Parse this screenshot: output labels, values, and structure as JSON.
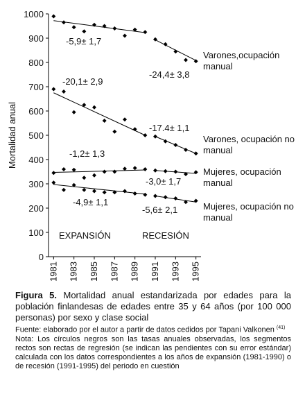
{
  "chart_data": {
    "type": "scatter",
    "ylabel": "Mortalidad anual",
    "x": [
      1981,
      1982,
      1983,
      1984,
      1985,
      1986,
      1987,
      1988,
      1989,
      1990,
      1991,
      1992,
      1993,
      1994,
      1995
    ],
    "xlim": [
      1980.5,
      1995.5
    ],
    "xticks": [
      1981,
      1983,
      1985,
      1987,
      1989,
      1991,
      1993,
      1995
    ],
    "ylim": [
      0,
      1000
    ],
    "yticks": [
      0,
      100,
      200,
      300,
      400,
      500,
      600,
      700,
      800,
      900,
      1000
    ],
    "series": [
      {
        "name": "Varones,ocupación manual",
        "color": "#000000",
        "values": [
          990,
          965,
          945,
          928,
          955,
          950,
          940,
          910,
          935,
          925,
          895,
          875,
          845,
          810,
          805
        ],
        "trends": [
          {
            "x": [
              1981,
              1990
            ],
            "y": [
              972,
              923
            ]
          },
          {
            "x": [
              1991,
              1995
            ],
            "y": [
              893,
              808
            ]
          }
        ]
      },
      {
        "name": "Varones, ocupación no manual",
        "color": "#000000",
        "values": [
          690,
          680,
          595,
          625,
          615,
          560,
          515,
          565,
          525,
          500,
          495,
          475,
          460,
          440,
          425
        ],
        "trends": [
          {
            "x": [
              1981,
              1990
            ],
            "y": [
              675,
              500
            ]
          },
          {
            "x": [
              1991,
              1995
            ],
            "y": [
              495,
              425
            ]
          }
        ]
      },
      {
        "name": "Mujeres, ocupación manual",
        "color": "#000000",
        "values": [
          345,
          360,
          358,
          325,
          335,
          350,
          350,
          362,
          365,
          360,
          355,
          352,
          350,
          340,
          348
        ],
        "trends": [
          {
            "x": [
              1981,
              1990
            ],
            "y": [
              347,
              357
            ]
          },
          {
            "x": [
              1991,
              1995
            ],
            "y": [
              355,
              343
            ]
          }
        ]
      },
      {
        "name": "Mujeres, ocupación no manual",
        "color": "#000000",
        "values": [
          305,
          275,
          295,
          275,
          270,
          265,
          265,
          270,
          260,
          255,
          250,
          245,
          240,
          225,
          230
        ],
        "trends": [
          {
            "x": [
              1981,
              1990
            ],
            "y": [
              297,
              258
            ]
          },
          {
            "x": [
              1991,
              1995
            ],
            "y": [
              250,
              225
            ]
          }
        ]
      }
    ],
    "annotations": [
      "-5,9± 1,7",
      "-24,4± 3,8",
      "-20,1± 2,9",
      "-17.4± 1,1",
      "-1,2± 1,3",
      "-3,0± 1,7",
      "-4,9± 1,1",
      "-5,6± 2,1",
      "EXPANSIÓN",
      "RECESIÓN"
    ]
  },
  "caption": {
    "label": "Figura 5.",
    "text": "Mortalidad anual estandarizada por edades para la población finlandesas de edades entre 35 y 64 años (por 100 000 personas) por sexo y clase social",
    "source": "Fuente: elaborado por el autor a partir de datos cedidos por Tapani Valkonen",
    "source_ref": "(41)",
    "note": "Nota: Los círculos negros son las tasas anuales observadas, los segmentos rectos son rectas de regresión (se indican las pendientes con su error estándar) calculada con los datos correspondientes a los años de expansión (1981-1990) o de recesión (1991-1995) del periodo en cuestión"
  }
}
